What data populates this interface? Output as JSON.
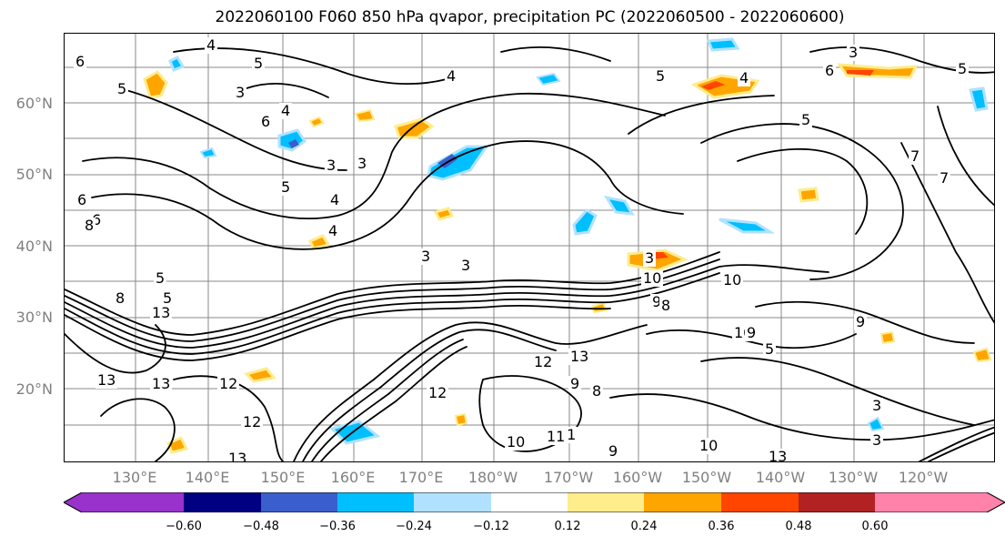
{
  "title": "2022060100 F060 850 hPa qvapor, precipitation PC (2022060500 - 2022060600)",
  "lat_ticks": [
    "60°N",
    "50°N",
    "40°N",
    "30°N",
    "20°N"
  ],
  "lon_ticks": [
    "130°E",
    "140°E",
    "150°E",
    "160°E",
    "170°E",
    "180°W",
    "170°W",
    "160°W",
    "150°W",
    "140°W",
    "130°W",
    "120°W"
  ],
  "colorbar": {
    "labels": [
      "−0.60",
      "−0.48",
      "−0.36",
      "−0.24",
      "−0.12",
      "0.12",
      "0.24",
      "0.36",
      "0.48",
      "0.60"
    ],
    "colors": [
      "#9932cc",
      "#000080",
      "#3a5fcd",
      "#00bfff",
      "#b0e2ff",
      "#ffffff",
      "#ffec8b",
      "#ffa500",
      "#ff4500",
      "#b22222",
      "#ff82ab"
    ]
  },
  "contour_labels": [
    "6",
    "5",
    "4",
    "3",
    "5",
    "6",
    "4",
    "3",
    "4",
    "3",
    "5",
    "6",
    "4",
    "3",
    "6",
    "5",
    "4",
    "7",
    "5",
    "6",
    "8",
    "8",
    "5",
    "3",
    "4",
    "3",
    "5",
    "10",
    "9",
    "8",
    "10",
    "9",
    "5",
    "3",
    "13",
    "13",
    "12",
    "12",
    "11",
    "10",
    "9",
    "13",
    "10",
    "13",
    "10",
    "13",
    "11",
    "12",
    "9",
    "8",
    "3",
    "9",
    "12",
    "13",
    "5",
    "7",
    "3"
  ],
  "contour_color": "#000000",
  "grid_color": "#888888"
}
